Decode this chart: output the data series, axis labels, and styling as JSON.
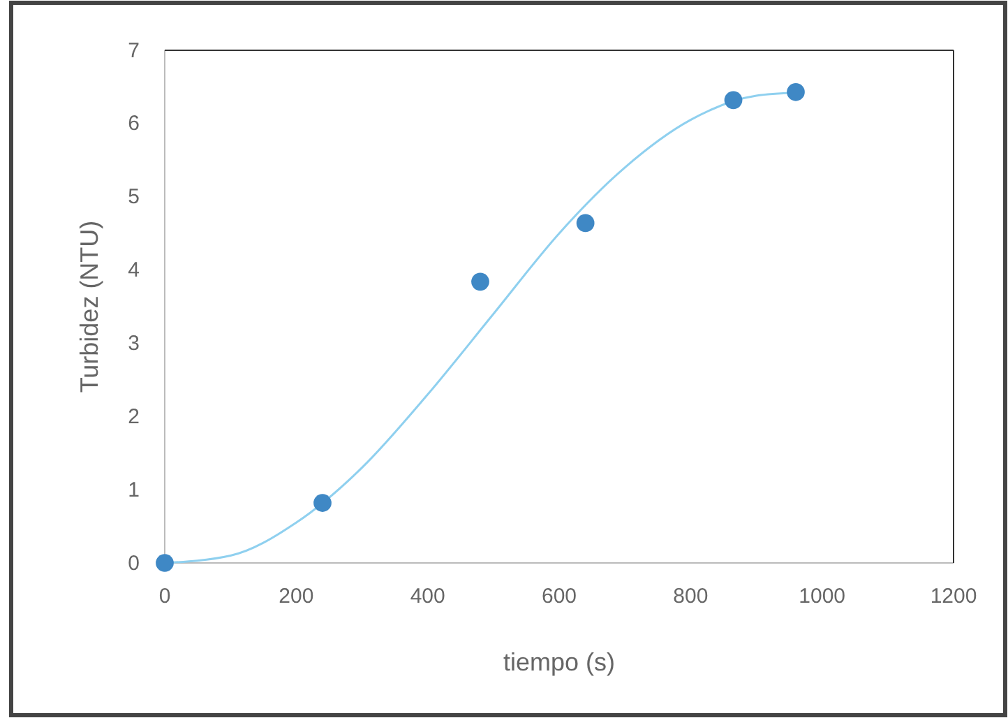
{
  "chart_data": {
    "type": "scatter",
    "xlabel": "tiempo (s)",
    "ylabel": "Turbidez (NTU)",
    "xlim": [
      0,
      1200
    ],
    "xticks": [
      0,
      200,
      400,
      600,
      800,
      1000,
      1200
    ],
    "ylim": [
      0,
      7
    ],
    "yticks": [
      0,
      1,
      2,
      3,
      4,
      5,
      6,
      7
    ],
    "grid": false,
    "series": [
      {
        "marker": "circle",
        "color": "#3f88c5",
        "x": [
          0,
          240,
          480,
          640,
          865,
          960
        ],
        "values": [
          0,
          0.82,
          3.84,
          4.64,
          6.32,
          6.43
        ]
      },
      {
        "type": "line",
        "color": "#8fd0ef",
        "x": [
          0,
          100,
          200,
          300,
          400,
          500,
          600,
          700,
          800,
          900,
          960
        ],
        "values": [
          0,
          0.1,
          0.55,
          1.3,
          2.3,
          3.4,
          4.5,
          5.4,
          6.05,
          6.38,
          6.42
        ]
      }
    ]
  }
}
